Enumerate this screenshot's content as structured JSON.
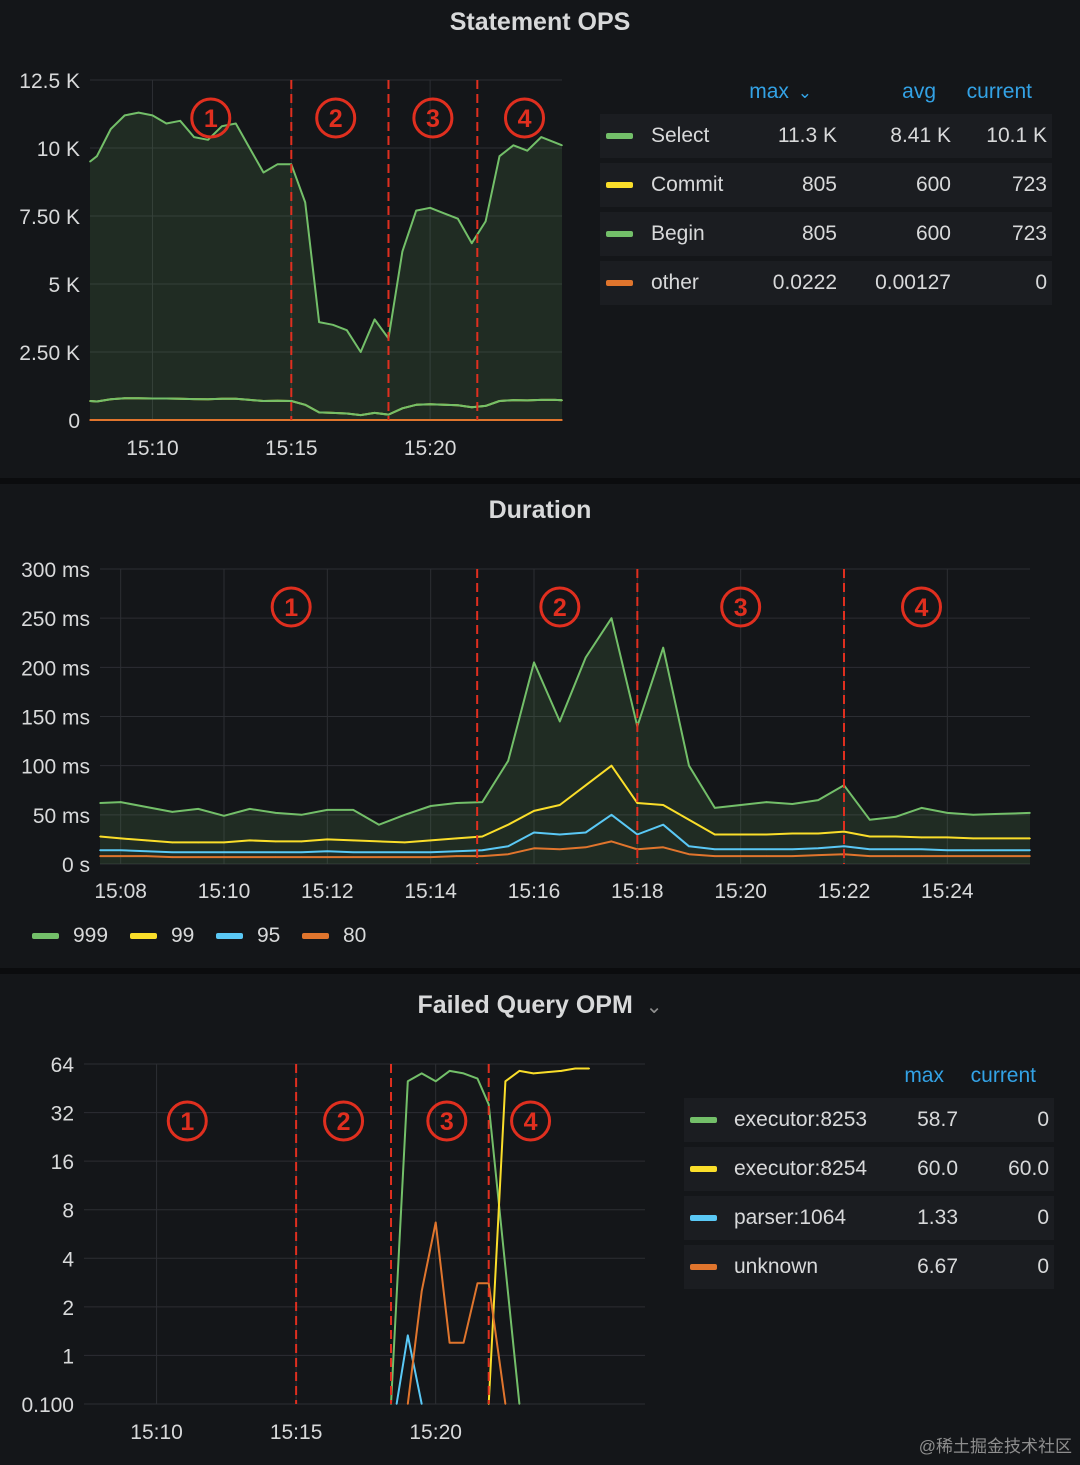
{
  "chart_data": [
    {
      "type": "line",
      "title": "Statement OPS",
      "xlabel": "",
      "ylabel": "",
      "ylim": [
        0,
        12500
      ],
      "yticks": [
        "0",
        "2.50 K",
        "5 K",
        "7.50 K",
        "10 K",
        "12.5 K"
      ],
      "ytick_values": [
        0,
        2500,
        5000,
        7500,
        10000,
        12500
      ],
      "xlim": [
        8.75,
        25.75
      ],
      "xticks": [
        "15:10",
        "15:15",
        "15:20"
      ],
      "xtick_values": [
        11,
        16,
        21
      ],
      "phase_markers": [
        {
          "x": 16,
          "label": "1"
        },
        {
          "x": 19.5,
          "label": "2"
        },
        {
          "x": 22.7,
          "label": "3"
        }
      ],
      "phase_labels": [
        {
          "x": 13.1,
          "label": "1"
        },
        {
          "x": 17.6,
          "label": "2"
        },
        {
          "x": 21.1,
          "label": "3"
        },
        {
          "x": 24.4,
          "label": "4"
        }
      ],
      "x": [
        8.75,
        9.0,
        9.5,
        10.0,
        10.5,
        11.0,
        11.5,
        12.0,
        12.5,
        13.0,
        13.5,
        14.0,
        14.5,
        15.0,
        15.5,
        16.0,
        16.5,
        17.0,
        17.5,
        18.0,
        18.5,
        19.0,
        19.5,
        20.0,
        20.5,
        21.0,
        21.5,
        22.0,
        22.5,
        23.0,
        23.5,
        24.0,
        24.5,
        25.0,
        25.5,
        25.75
      ],
      "series": [
        {
          "name": "Select",
          "color": "#73bf69",
          "fill": true,
          "values": [
            9500,
            9700,
            10700,
            11200,
            11300,
            11200,
            10900,
            11000,
            10400,
            10300,
            10800,
            10900,
            10000,
            9100,
            9400,
            9400,
            8000,
            3600,
            3500,
            3300,
            2500,
            3700,
            3000,
            6200,
            7700,
            7800,
            7600,
            7400,
            6500,
            7300,
            9700,
            10100,
            9900,
            10400,
            10200,
            10100
          ]
        },
        {
          "name": "Commit",
          "color": "#fade2a",
          "fill": false,
          "values": [
            700,
            680,
            760,
            800,
            800,
            790,
            790,
            780,
            770,
            760,
            780,
            780,
            740,
            700,
            710,
            700,
            560,
            280,
            260,
            240,
            180,
            260,
            200,
            430,
            560,
            580,
            560,
            540,
            470,
            520,
            700,
            730,
            720,
            740,
            740,
            723
          ]
        },
        {
          "name": "Begin",
          "color": "#73bf69",
          "fill": false,
          "values": [
            700,
            680,
            760,
            800,
            800,
            790,
            790,
            780,
            770,
            760,
            780,
            780,
            740,
            700,
            710,
            700,
            560,
            280,
            260,
            240,
            180,
            260,
            200,
            430,
            560,
            580,
            560,
            540,
            470,
            520,
            700,
            730,
            720,
            740,
            740,
            723
          ]
        },
        {
          "name": "other",
          "color": "#e0752d",
          "fill": false,
          "values": [
            0,
            0,
            0,
            0,
            0,
            0,
            0,
            0,
            0,
            0,
            0,
            0,
            0,
            0,
            0,
            0,
            0,
            0,
            0,
            0,
            0,
            0,
            0,
            0,
            0,
            0,
            0,
            0,
            0,
            0,
            0,
            0,
            0,
            0,
            0,
            0
          ]
        }
      ],
      "legend": {
        "headers": {
          "max": "max",
          "avg": "avg",
          "current": "current"
        },
        "rows": [
          {
            "name": "Select",
            "color": "#73bf69",
            "max": "11.3 K",
            "avg": "8.41 K",
            "current": "10.1 K"
          },
          {
            "name": "Commit",
            "color": "#fade2a",
            "max": "805",
            "avg": "600",
            "current": "723"
          },
          {
            "name": "Begin",
            "color": "#73bf69",
            "max": "805",
            "avg": "600",
            "current": "723"
          },
          {
            "name": "other",
            "color": "#e0752d",
            "max": "0.0222",
            "avg": "0.00127",
            "current": "0"
          }
        ]
      }
    },
    {
      "type": "line",
      "title": "Duration",
      "xlabel": "",
      "ylabel": "",
      "ylim": [
        0,
        300
      ],
      "yticks": [
        "0 s",
        "50 ms",
        "100 ms",
        "150 ms",
        "200 ms",
        "250 ms",
        "300 ms"
      ],
      "ytick_values": [
        0,
        50,
        100,
        150,
        200,
        250,
        300
      ],
      "xlim": [
        7.6,
        25.6
      ],
      "xticks": [
        "15:08",
        "15:10",
        "15:12",
        "15:14",
        "15:16",
        "15:18",
        "15:20",
        "15:22",
        "15:24"
      ],
      "xtick_values": [
        8,
        10,
        12,
        14,
        16,
        18,
        20,
        22,
        24
      ],
      "phase_markers": [
        {
          "x": 14.9,
          "label": "1"
        },
        {
          "x": 18.0,
          "label": "2"
        },
        {
          "x": 22.0,
          "label": "3"
        }
      ],
      "phase_labels": [
        {
          "x": 11.3,
          "label": "1"
        },
        {
          "x": 16.5,
          "label": "2"
        },
        {
          "x": 20.0,
          "label": "3"
        },
        {
          "x": 23.5,
          "label": "4"
        }
      ],
      "x": [
        7.6,
        8.0,
        8.5,
        9.0,
        9.5,
        10.0,
        10.5,
        11.0,
        11.5,
        12.0,
        12.5,
        13.0,
        13.5,
        14.0,
        14.5,
        15.0,
        15.5,
        16.0,
        16.5,
        17.0,
        17.5,
        18.0,
        18.5,
        19.0,
        19.5,
        20.0,
        20.5,
        21.0,
        21.5,
        22.0,
        22.5,
        23.0,
        23.5,
        24.0,
        24.5,
        25.0,
        25.6
      ],
      "series": [
        {
          "name": "999",
          "color": "#73bf69",
          "fill": true,
          "values": [
            62,
            63,
            58,
            53,
            56,
            49,
            56,
            52,
            50,
            55,
            55,
            40,
            50,
            59,
            62,
            63,
            105,
            205,
            145,
            210,
            250,
            140,
            220,
            100,
            57,
            60,
            63,
            61,
            65,
            80,
            45,
            48,
            57,
            52,
            50,
            51,
            52
          ]
        },
        {
          "name": "99",
          "color": "#fade2a",
          "fill": false,
          "values": [
            28,
            26,
            24,
            22,
            22,
            22,
            24,
            23,
            23,
            25,
            24,
            23,
            22,
            24,
            26,
            28,
            40,
            54,
            60,
            80,
            100,
            62,
            60,
            45,
            30,
            30,
            30,
            31,
            31,
            33,
            28,
            28,
            27,
            27,
            26,
            26,
            26
          ]
        },
        {
          "name": "95",
          "color": "#5ac8f5",
          "fill": false,
          "values": [
            14,
            14,
            13,
            12,
            12,
            12,
            12,
            12,
            12,
            13,
            12,
            12,
            12,
            12,
            13,
            14,
            18,
            32,
            30,
            32,
            50,
            30,
            40,
            18,
            15,
            15,
            15,
            15,
            16,
            18,
            15,
            15,
            15,
            14,
            14,
            14,
            14
          ]
        },
        {
          "name": "80",
          "color": "#e0752d",
          "fill": false,
          "values": [
            8,
            8,
            8,
            7,
            7,
            7,
            7,
            7,
            7,
            7,
            7,
            7,
            7,
            7,
            8,
            8,
            10,
            16,
            15,
            17,
            23,
            15,
            17,
            10,
            8,
            8,
            8,
            8,
            9,
            10,
            8,
            8,
            8,
            8,
            8,
            8,
            8
          ]
        }
      ],
      "legend": {
        "rows": [
          {
            "name": "999",
            "color": "#73bf69"
          },
          {
            "name": "99",
            "color": "#fade2a"
          },
          {
            "name": "95",
            "color": "#5ac8f5"
          },
          {
            "name": "80",
            "color": "#e0752d"
          }
        ]
      }
    },
    {
      "type": "line",
      "title": "Failed Query OPM",
      "title_chevron": "⌄",
      "yscale": "log2",
      "xlabel": "",
      "ylabel": "",
      "ylim": [
        0.1,
        64
      ],
      "yticks": [
        "0.100",
        "1",
        "2",
        "4",
        "8",
        "16",
        "32",
        "64"
      ],
      "ytick_values": [
        0.1,
        1,
        2,
        4,
        8,
        16,
        32,
        64
      ],
      "xlim": [
        7.4,
        27.5
      ],
      "xticks": [
        "15:10",
        "15:15",
        "15:20"
      ],
      "xtick_values": [
        10,
        15,
        20
      ],
      "phase_markers": [
        {
          "x": 15.0,
          "label": "1"
        },
        {
          "x": 18.4,
          "label": "2"
        },
        {
          "x": 21.9,
          "label": "3"
        }
      ],
      "phase_labels": [
        {
          "x": 11.1,
          "label": "1"
        },
        {
          "x": 16.7,
          "label": "2"
        },
        {
          "x": 20.4,
          "label": "3"
        },
        {
          "x": 23.4,
          "label": "4"
        }
      ],
      "series": [
        {
          "name": "executor:8253",
          "color": "#73bf69",
          "x": [
            18.4,
            19.0,
            19.5,
            20.0,
            20.5,
            21.0,
            21.5,
            21.9,
            23.0
          ],
          "values": [
            0.1,
            50,
            56,
            50,
            58,
            56,
            52,
            36,
            0.1
          ]
        },
        {
          "name": "executor:8254",
          "color": "#fade2a",
          "x": [
            21.9,
            22.5,
            23.0,
            23.5,
            24.0,
            24.5,
            25.0,
            25.5
          ],
          "values": [
            0.1,
            50,
            58,
            56,
            57,
            58,
            60,
            60
          ]
        },
        {
          "name": "parser:1064",
          "color": "#5ac8f5",
          "x": [
            18.6,
            19.0,
            19.5
          ],
          "values": [
            0.1,
            1.33,
            0.1
          ]
        },
        {
          "name": "unknown",
          "color": "#e0752d",
          "x": [
            19.0,
            19.5,
            20.0,
            20.5,
            21.0,
            21.5,
            21.9,
            22.5
          ],
          "values": [
            0.1,
            2.5,
            6.67,
            1.2,
            1.2,
            2.8,
            2.8,
            0.1
          ]
        }
      ],
      "legend": {
        "headers": {
          "max": "max",
          "current": "current"
        },
        "rows": [
          {
            "name": "executor:8253",
            "color": "#73bf69",
            "max": "58.7",
            "current": "0"
          },
          {
            "name": "executor:8254",
            "color": "#fade2a",
            "max": "60.0",
            "current": "60.0"
          },
          {
            "name": "parser:1064",
            "color": "#5ac8f5",
            "max": "1.33",
            "current": "0"
          },
          {
            "name": "unknown",
            "color": "#e0752d",
            "max": "6.67",
            "current": "0"
          }
        ]
      }
    }
  ],
  "ops_sort_chevron": "⌄",
  "watermark": "@稀土掘金技术社区"
}
